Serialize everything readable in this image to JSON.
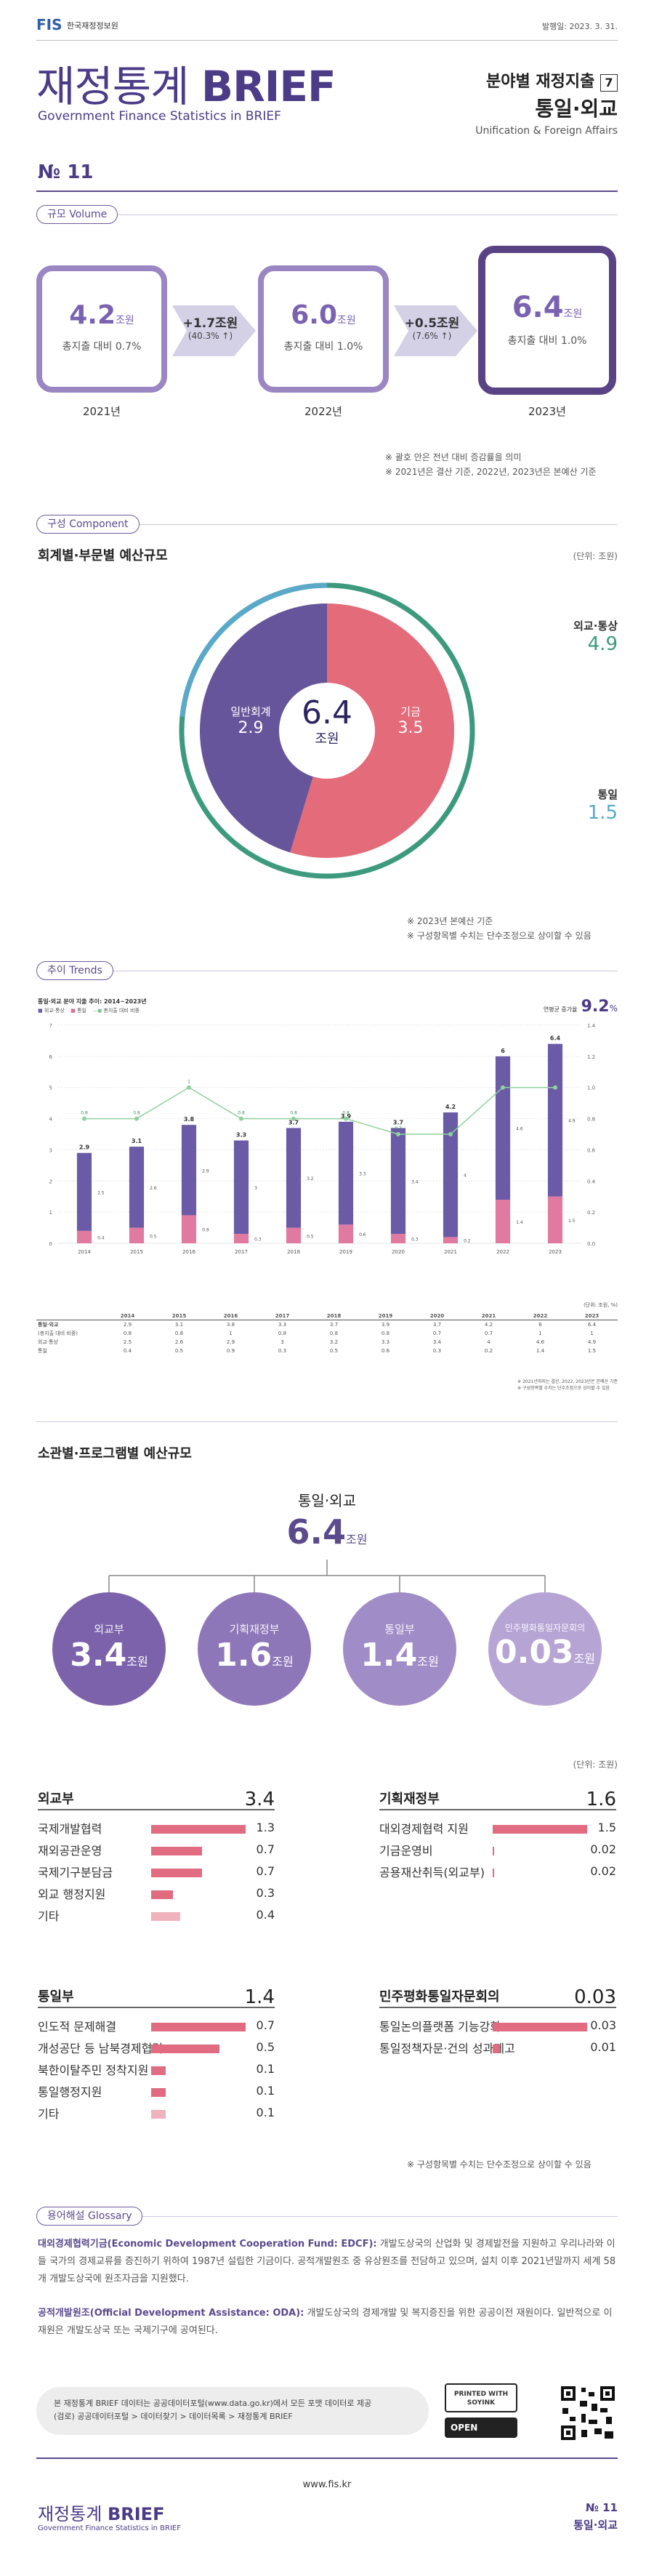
{
  "header": {
    "logo_text": "FIS",
    "org_name": "한국재정정보원",
    "issue_date": "발행일: 2023. 3. 31.",
    "title_kr": "재정통계",
    "title_en": "BRIEF",
    "subtitle": "Government Finance Statistics in BRIEF",
    "category": "분야별 재정지출",
    "category_no": "7",
    "topic": "통일·외교",
    "topic_en": "Unification & Foreign Affairs",
    "issue_no": "№ 11"
  },
  "volume": {
    "section_label": "규모 Volume",
    "years": [
      {
        "year": "2021년",
        "value": "4.2",
        "unit": "조원",
        "share": "총지출 대비 0.7%"
      },
      {
        "year": "2022년",
        "value": "6.0",
        "unit": "조원",
        "share": "총지출 대비 1.0%"
      },
      {
        "year": "2023년",
        "value": "6.4",
        "unit": "조원",
        "share": "총지출 대비 1.0%"
      }
    ],
    "changes": [
      {
        "label": "+1.7조원",
        "pct": "(40.3% ↑)"
      },
      {
        "label": "+0.5조원",
        "pct": "(7.6% ↑)"
      }
    ],
    "notes": [
      "※ 괄호 안은 전년 대비 증감률을 의미",
      "※ 2021년은 결산 기준, 2022년, 2023년은 본예산 기준"
    ]
  },
  "component": {
    "section_label": "구성 Component",
    "heading": "회계별·부문별 예산규모",
    "unit": "(단위: 조원)",
    "center_value": "6.4",
    "center_unit": "조원",
    "slices": [
      {
        "name": "일반회계",
        "value": "2.9",
        "color": "#66559a"
      },
      {
        "name": "기금",
        "value": "3.5",
        "color": "#e36b7a"
      }
    ],
    "outer": [
      {
        "name": "외교·통상",
        "value": "4.9",
        "color": "#3d9a7e"
      },
      {
        "name": "통일",
        "value": "1.5",
        "color": "#5aa9c9"
      }
    ],
    "notes": [
      "※ 2023년 본예산 기준",
      "※ 구성항목별 수치는 단수조정으로 상이할 수 있음"
    ]
  },
  "trends": {
    "section_label": "추이 Trends",
    "chart_title": "통일·외교 분야 지출 추이: 2014~2023년",
    "legend": [
      "외교·통상",
      "통일",
      "총지출 대비 비중"
    ],
    "cagr_label": "연평균 증가율",
    "cagr_value": "9.2",
    "cagr_unit": "%",
    "table_unit": "(단위: 조원, %)",
    "table_rows": [
      "통일·외교",
      "(총지출 대비 비중)",
      "외교·통상",
      "통일"
    ],
    "table_notes": [
      "※ 2021년까지는 결산, 2022, 2023년은 본예산 기준",
      "※ 구성항목별 수치는 단수조정으로 상이할 수 있음"
    ]
  },
  "chart_data": {
    "type": "bar",
    "categories": [
      "2014",
      "2015",
      "2016",
      "2017",
      "2018",
      "2019",
      "2020",
      "2021",
      "2022",
      "2023"
    ],
    "series": [
      {
        "name": "외교·통상",
        "values": [
          2.5,
          2.6,
          2.9,
          3.0,
          3.2,
          3.3,
          3.4,
          4.0,
          4.6,
          4.9
        ]
      },
      {
        "name": "통일",
        "values": [
          0.4,
          0.5,
          0.9,
          0.3,
          0.5,
          0.6,
          0.3,
          0.2,
          1.4,
          1.5
        ]
      },
      {
        "name": "총지출 대비 비중",
        "values": [
          0.8,
          0.8,
          1.0,
          0.8,
          0.8,
          0.8,
          0.7,
          0.7,
          1.0,
          1.0
        ]
      }
    ],
    "totals": [
      2.9,
      3.1,
      3.8,
      3.3,
      3.7,
      3.9,
      3.7,
      4.2,
      6.0,
      6.4
    ],
    "ylim_left": [
      0,
      7
    ],
    "ylim_right": [
      0,
      1.4
    ]
  },
  "program": {
    "heading": "소관별·프로그램별 예산규모",
    "top_name": "통일·외교",
    "top_value": "6.4",
    "top_unit": "조원",
    "unit_note": "(단위: 조원)",
    "circles": [
      {
        "name": "외교부",
        "value": "3.4",
        "unit": "조원",
        "color": "#7b62aa"
      },
      {
        "name": "기획재정부",
        "value": "1.6",
        "unit": "조원",
        "color": "#8e77b8"
      },
      {
        "name": "통일부",
        "value": "1.4",
        "unit": "조원",
        "color": "#a08cc6"
      },
      {
        "name": "민주평화통일자문회의",
        "value": "0.03",
        "unit": "조원",
        "color": "#b6a5d4"
      }
    ],
    "groups": [
      {
        "name": "외교부",
        "total": "3.4",
        "items": [
          {
            "label": "국제개발협력",
            "value": "1.3",
            "frac": 1.0
          },
          {
            "label": "재외공관운영",
            "value": "0.7",
            "frac": 0.54
          },
          {
            "label": "국제기구분담금",
            "value": "0.7",
            "frac": 0.54
          },
          {
            "label": "외교 행정지원",
            "value": "0.3",
            "frac": 0.23
          },
          {
            "label": "기타",
            "value": "0.4",
            "frac": 0.31
          }
        ]
      },
      {
        "name": "기획재정부",
        "total": "1.6",
        "items": [
          {
            "label": "대외경제협력 지원",
            "value": "1.5",
            "frac": 1.0
          },
          {
            "label": "기금운영비",
            "value": "0.02",
            "frac": 0.013
          },
          {
            "label": "공용재산취득(외교부)",
            "value": "0.02",
            "frac": 0.013
          }
        ]
      },
      {
        "name": "통일부",
        "total": "1.4",
        "items": [
          {
            "label": "인도적 문제해결",
            "value": "0.7",
            "frac": 1.0
          },
          {
            "label": "개성공단 등 남북경제협력",
            "value": "0.5",
            "frac": 0.72
          },
          {
            "label": "북한이탈주민 정착지원",
            "value": "0.1",
            "frac": 0.15
          },
          {
            "label": "통일행정지원",
            "value": "0.1",
            "frac": 0.15
          },
          {
            "label": "기타",
            "value": "0.1",
            "frac": 0.15
          }
        ]
      },
      {
        "name": "민주평화통일자문회의",
        "total": "0.03",
        "items": [
          {
            "label": "통일논의플랫폼 기능강화",
            "value": "0.03",
            "frac": 1.0
          },
          {
            "label": "통일정책자문·건의 성과제고",
            "value": "0.01",
            "frac": 0.08
          }
        ]
      }
    ],
    "note": "※ 구성항목별 수치는 단수조정으로 상이할 수 있음"
  },
  "glossary": {
    "section_label": "용어해설 Glossary",
    "entries": [
      {
        "term": "대외경제협력기금(Economic Development Cooperation Fund: EDCF):",
        "text": "개발도상국의 산업화 및 경제발전을 지원하고 우리나라와 이들 국가의 경제교류를 증진하기 위하여 1987년 설립한 기금이다. 공적개발원조 중 유상원조를 전담하고 있으며, 설치 이후 2021년말까지 세계 58개 개발도상국에 원조자금을 지원했다."
      },
      {
        "term": "공적개발원조(Official Development Assistance: ODA):",
        "text": "개발도상국의 경제개발 및 복지증진을 위한 공공이전 재원이다. 일반적으로 이 재원은 개발도상국 또는 국제기구에 공여된다."
      }
    ]
  },
  "footer": {
    "source_text": "본 재정통계 BRIEF 데이터는 공공데이터포털(www.data.go.kr)에서 모든 포맷 데이터로 제공",
    "source_path": "(검로) 공공데이터포털 > 데이터찾기 > 데이터목록 > 재정통계 BRIEF",
    "soy_label": "PRINTED WITH SOYINK",
    "open_label": "OPEN",
    "website": "www.fis.kr",
    "brand_kr": "재정통계",
    "brand_en": "BRIEF",
    "brand_sub": "Government Finance Statistics in BRIEF",
    "issue_no": "№ 11",
    "topic": "통일·외교"
  }
}
